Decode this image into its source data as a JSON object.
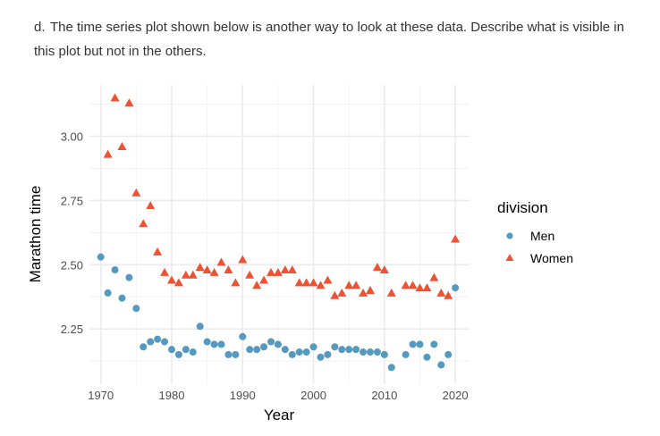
{
  "question": {
    "label": "d.",
    "text": "The time series plot shown below is another way to look at these data. Describe what is visible in this plot but not in the others."
  },
  "chart_data": {
    "type": "scatter",
    "xlabel": "Year",
    "ylabel": "Marathon time",
    "xlim": [
      1968.4,
      2022
    ],
    "ylim": [
      2.035,
      3.2
    ],
    "xticks": [
      "1970",
      "1980",
      "1990",
      "2000",
      "2010",
      "2020"
    ],
    "yticks": [
      "2.25",
      "2.50",
      "2.75",
      "3.00"
    ],
    "grid": true,
    "legend": {
      "title": "division",
      "placement": "right"
    },
    "series": [
      {
        "name": "Men",
        "marker": "circle",
        "color": "#5499c0",
        "x": [
          1970,
          1971,
          1972,
          1973,
          1974,
          1975,
          1976,
          1977,
          1978,
          1979,
          1980,
          1981,
          1982,
          1983,
          1984,
          1985,
          1986,
          1987,
          1988,
          1989,
          1990,
          1991,
          1992,
          1993,
          1994,
          1995,
          1996,
          1997,
          1998,
          1999,
          2000,
          2001,
          2002,
          2003,
          2004,
          2005,
          2006,
          2007,
          2008,
          2009,
          2010,
          2011,
          2013,
          2014,
          2015,
          2016,
          2017,
          2018,
          2019,
          2020
        ],
        "y": [
          2.53,
          2.39,
          2.48,
          2.37,
          2.45,
          2.33,
          2.18,
          2.2,
          2.21,
          2.2,
          2.17,
          2.15,
          2.17,
          2.16,
          2.26,
          2.2,
          2.19,
          2.19,
          2.15,
          2.15,
          2.22,
          2.17,
          2.17,
          2.18,
          2.2,
          2.19,
          2.17,
          2.15,
          2.16,
          2.16,
          2.18,
          2.14,
          2.15,
          2.18,
          2.17,
          2.17,
          2.17,
          2.16,
          2.16,
          2.16,
          2.15,
          2.1,
          2.15,
          2.19,
          2.19,
          2.14,
          2.19,
          2.11,
          2.15,
          2.41
        ]
      },
      {
        "name": "Women",
        "marker": "triangle",
        "color": "#ee5233",
        "x": [
          1971,
          1972,
          1973,
          1974,
          1975,
          1976,
          1977,
          1978,
          1979,
          1980,
          1981,
          1982,
          1983,
          1984,
          1985,
          1986,
          1987,
          1988,
          1989,
          1990,
          1991,
          1992,
          1993,
          1994,
          1995,
          1996,
          1997,
          1998,
          1999,
          2000,
          2001,
          2002,
          2003,
          2004,
          2005,
          2006,
          2007,
          2008,
          2009,
          2010,
          2011,
          2013,
          2014,
          2015,
          2016,
          2017,
          2018,
          2019,
          2020
        ],
        "y": [
          2.93,
          3.15,
          2.96,
          3.13,
          2.78,
          2.66,
          2.73,
          2.55,
          2.47,
          2.44,
          2.43,
          2.46,
          2.46,
          2.49,
          2.48,
          2.47,
          2.51,
          2.48,
          2.43,
          2.52,
          2.46,
          2.42,
          2.44,
          2.47,
          2.47,
          2.48,
          2.48,
          2.43,
          2.43,
          2.43,
          2.42,
          2.44,
          2.38,
          2.39,
          2.42,
          2.42,
          2.39,
          2.4,
          2.49,
          2.48,
          2.39,
          2.42,
          2.42,
          2.41,
          2.41,
          2.45,
          2.39,
          2.38,
          2.6
        ]
      }
    ]
  }
}
